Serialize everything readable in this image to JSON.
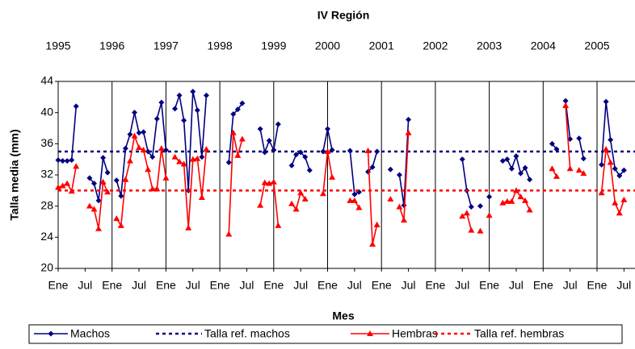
{
  "chart_data": {
    "type": "line",
    "title": "IV Región",
    "xlabel": "Mes",
    "ylabel": "Talla media (mm)",
    "years": [
      "1995",
      "1996",
      "1997",
      "1998",
      "1999",
      "2000",
      "2001",
      "2002",
      "2003",
      "2004",
      "2005"
    ],
    "categories": [
      "Ene",
      null,
      null,
      null,
      null,
      null,
      "Jul",
      null,
      null,
      null,
      null,
      null,
      "Ene",
      null,
      null,
      null,
      null,
      null,
      "Jul",
      null,
      null,
      null,
      null,
      null,
      "Ene",
      null,
      null,
      null,
      null,
      null,
      "Jul",
      null,
      null,
      null,
      null,
      null,
      "Ene",
      null,
      null,
      null,
      null,
      null,
      "Jul",
      null,
      null,
      null,
      null,
      null,
      "Ene",
      null,
      null,
      null,
      null,
      null,
      "Jul",
      null,
      null,
      null,
      null,
      null,
      "Ene",
      null,
      null,
      null,
      null,
      null,
      "Jul",
      null,
      null,
      null,
      null,
      null,
      "Ene",
      null,
      null,
      null,
      null,
      null,
      "Jul",
      null,
      null,
      null,
      null,
      null,
      "Ene",
      null,
      null,
      null,
      null,
      null,
      "Jul",
      null,
      null,
      null,
      null,
      null,
      "Ene",
      null,
      null,
      null,
      null,
      null,
      "Jul",
      null,
      null,
      null,
      null,
      null,
      "Ene",
      null,
      null,
      null,
      null,
      null,
      "Jul",
      null,
      null,
      null,
      null,
      null,
      "Ene",
      null,
      null,
      null,
      null,
      null,
      "Jul",
      null,
      null
    ],
    "ylim": [
      20,
      44
    ],
    "yticks": [
      20,
      24,
      28,
      32,
      36,
      40,
      44
    ],
    "grid": false,
    "series": [
      {
        "name": "Machos",
        "color": "#000080",
        "marker": "diamond",
        "values": [
          33.9,
          33.8,
          33.8,
          33.9,
          40.8,
          null,
          null,
          31.6,
          30.9,
          28.7,
          34.2,
          32.3,
          null,
          31.3,
          29.3,
          35.4,
          37.2,
          40.0,
          37.4,
          37.5,
          35.0,
          34.3,
          39.2,
          41.3,
          35.2,
          null,
          40.5,
          42.2,
          39.0,
          30.0,
          42.7,
          40.3,
          34.3,
          42.2,
          null,
          null,
          null,
          null,
          33.6,
          39.8,
          40.4,
          41.2,
          null,
          null,
          null,
          37.9,
          34.9,
          36.4,
          35.2,
          38.5,
          null,
          null,
          33.2,
          34.6,
          34.9,
          34.3,
          32.6,
          null,
          null,
          35.0,
          37.9,
          35.2,
          null,
          null,
          null,
          35.1,
          29.5,
          29.8,
          null,
          32.4,
          33.0,
          35.0,
          null,
          null,
          32.7,
          null,
          32.0,
          28.1,
          39.1,
          null,
          null,
          null,
          null,
          null,
          null,
          null,
          null,
          null,
          null,
          null,
          34.0,
          30.0,
          27.9,
          null,
          28.0,
          null,
          29.2,
          null,
          null,
          33.8,
          34.0,
          32.8,
          34.4,
          32.2,
          32.9,
          31.4,
          null,
          null,
          null,
          null,
          36.0,
          35.3,
          null,
          41.5,
          36.6,
          null,
          36.7,
          34.1,
          null,
          null,
          null,
          33.3,
          41.4,
          36.5,
          32.8,
          31.9,
          32.6,
          null,
          null
        ]
      },
      {
        "name": "Talla ref. machos",
        "color": "#000080",
        "value": 35
      },
      {
        "name": "Hembras",
        "color": "#ff0000",
        "marker": "triangle",
        "values": [
          30.4,
          30.6,
          30.9,
          29.9,
          33.1,
          null,
          null,
          28.0,
          27.6,
          25.1,
          31.1,
          29.8,
          null,
          26.4,
          25.5,
          31.4,
          33.8,
          37.0,
          35.5,
          35.2,
          32.7,
          30.2,
          30.2,
          35.4,
          31.6,
          null,
          34.3,
          33.7,
          33.4,
          25.2,
          34.0,
          34.1,
          29.1,
          35.3,
          null,
          null,
          null,
          null,
          24.4,
          37.4,
          34.5,
          36.6,
          null,
          null,
          null,
          28.1,
          31.0,
          30.9,
          31.1,
          25.5,
          null,
          null,
          28.3,
          27.6,
          29.7,
          28.9,
          null,
          null,
          null,
          29.6,
          35.0,
          31.7,
          null,
          null,
          null,
          28.7,
          28.7,
          27.8,
          null,
          35.1,
          23.1,
          25.6,
          null,
          null,
          28.9,
          null,
          27.9,
          26.2,
          37.4,
          null,
          null,
          null,
          null,
          null,
          null,
          null,
          null,
          null,
          null,
          null,
          26.7,
          27.1,
          24.9,
          null,
          24.8,
          null,
          26.8,
          null,
          null,
          28.4,
          28.6,
          28.6,
          30.0,
          29.2,
          28.7,
          27.5,
          null,
          null,
          null,
          null,
          32.8,
          31.8,
          null,
          40.9,
          32.8,
          null,
          32.6,
          32.2,
          null,
          null,
          null,
          29.7,
          35.3,
          33.6,
          28.4,
          27.1,
          28.8,
          null,
          null
        ]
      },
      {
        "name": "Talla ref. hembras",
        "color": "#ff0000",
        "value": 30
      }
    ]
  }
}
